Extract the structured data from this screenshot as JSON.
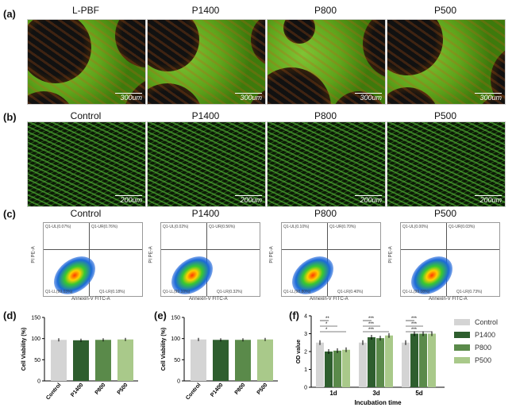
{
  "row_a": {
    "letter": "(a)",
    "titles": [
      "L-PBF",
      "P1400",
      "P800",
      "P500"
    ],
    "scale": "300um"
  },
  "row_b": {
    "letter": "(b)",
    "titles": [
      "Control",
      "P1400",
      "P800",
      "P500"
    ],
    "scale": "200um"
  },
  "row_c": {
    "letter": "(c)",
    "titles": [
      "Control",
      "P1400",
      "P800",
      "P500"
    ],
    "ylabel": "PI PE-A",
    "xlabel": "Annexin-V FITC-A",
    "quadrants": [
      {
        "ul": "Q1-UL(0.07%)",
        "ur": "Q1-UR(0.76%)",
        "ll": "Q1-LL(99.03%)",
        "lr": "Q1-LR(0.18%)"
      },
      {
        "ul": "Q1-UL(0.02%)",
        "ur": "Q1-UR(0.56%)",
        "ll": "Q1-LL(99.10%)",
        "lr": "Q1-LR(0.32%)"
      },
      {
        "ul": "Q1-UL(0.10%)",
        "ur": "Q1-UR(0.70%)",
        "ll": "Q1-LL(98.80%)",
        "lr": "Q1-LR(0.40%)"
      },
      {
        "ul": "Q1-UL(0.00%)",
        "ur": "Q1-UR(0.03%)",
        "ll": "Q1-LL(99.08%)",
        "lr": "Q1-LR(0.73%)"
      }
    ]
  },
  "colors": {
    "control": "#d4d4d4",
    "p1400": "#2e5e2e",
    "p800": "#5a8a4a",
    "p500": "#a9c98a"
  },
  "chart_data": [
    {
      "type": "bar",
      "panel": "(d)",
      "ylabel": "Cell Viability (%)",
      "categories": [
        "Control",
        "P1400",
        "P800",
        "P500"
      ],
      "values": [
        97,
        96,
        97,
        98
      ],
      "ylim": [
        0,
        150
      ],
      "yticks": [
        "0",
        "50",
        "100",
        "150"
      ]
    },
    {
      "type": "bar",
      "panel": "(e)",
      "ylabel": "Cell Viability (%)",
      "categories": [
        "Control",
        "P1400",
        "P800",
        "P500"
      ],
      "values": [
        98,
        97,
        97,
        98
      ],
      "ylim": [
        0,
        150
      ],
      "yticks": [
        "0",
        "50",
        "100",
        "150"
      ]
    },
    {
      "type": "bar",
      "panel": "(f)",
      "ylabel": "OD value",
      "xlabel": "Incubation time",
      "categories": [
        "1d",
        "3d",
        "5d"
      ],
      "ylim": [
        0,
        4
      ],
      "yticks": [
        "0",
        "1",
        "2",
        "3",
        "4"
      ],
      "series": [
        {
          "name": "Control",
          "values": [
            2.5,
            2.5,
            2.5
          ]
        },
        {
          "name": "P1400",
          "values": [
            2.0,
            2.8,
            3.0
          ]
        },
        {
          "name": "P800",
          "values": [
            2.05,
            2.75,
            3.0
          ]
        },
        {
          "name": "P500",
          "values": [
            2.1,
            2.9,
            3.0
          ]
        }
      ],
      "significance": [
        "**",
        "*",
        "*",
        "***",
        "***",
        "***",
        "***",
        "***",
        "***"
      ]
    }
  ]
}
